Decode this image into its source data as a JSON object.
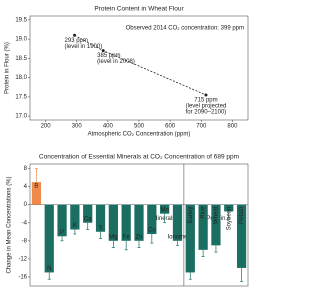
{
  "chart_data": [
    {
      "type": "line",
      "title": "Protein Content in Wheat Flour",
      "xlabel": "Atmospheric CO₂ Concentration (ppm)",
      "ylabel": "Protein in Flour (%)",
      "x": [
        293,
        385,
        715
      ],
      "values": [
        19.1,
        18.7,
        17.55
      ],
      "color": "#222222",
      "point_labels": [
        [
          "293 ppm",
          "(level in 1900)"
        ],
        [
          "385 ppm",
          "(level in 2008)"
        ],
        [
          "715 ppm",
          "(level projected",
          "for 2090–2100)"
        ]
      ],
      "annotation": "Observed 2014 CO₂ concentration: 399 ppm",
      "xlim": [
        150,
        850
      ],
      "xticks": [
        200,
        300,
        400,
        500,
        600,
        700,
        800
      ],
      "ylim": [
        16.9,
        19.6
      ],
      "yticks": [
        {
          "value": 17,
          "label": "17.0"
        },
        17.5,
        {
          "value": 18,
          "label": "18.0"
        },
        18.5,
        {
          "value": 19,
          "label": "19.0"
        },
        19.5
      ]
    },
    {
      "type": "bar",
      "title": "Concentration of Essential Minerals at CO₂ Concentration of 689 ppm",
      "ylabel": "Change in Mean Concentrations (%)",
      "groups": [
        {
          "name": "Minerals",
          "categories": [
            "B",
            "N",
            "P",
            "K",
            "Ca",
            "S",
            "Mg",
            "Fe",
            "Zn",
            "Cu",
            "Mn",
            "Ionome"
          ],
          "values": [
            5,
            -15,
            -7,
            -5.5,
            -4,
            -6,
            -8,
            -8,
            -8,
            -6.5,
            -2,
            -8
          ],
          "errors": [
            3,
            1.5,
            1,
            1,
            1.5,
            1.5,
            1.5,
            2,
            1.5,
            2,
            2,
            1
          ],
          "colors": [
            "#f08a4b",
            "#1b6e62",
            "#1b6e62",
            "#1b6e62",
            "#1b6e62",
            "#1b6e62",
            "#1b6e62",
            "#1b6e62",
            "#1b6e62",
            "#1b6e62",
            "#1b6e62",
            "#1b6e62"
          ]
        },
        {
          "name": "Protein",
          "categories": [
            "Barley",
            "Rice",
            "Wheat",
            "Soybean",
            "Potato"
          ],
          "values": [
            -15,
            -10,
            -9,
            -1.5,
            -14
          ],
          "errors": [
            1.5,
            1.5,
            1.5,
            1.5,
            3
          ],
          "colors": [
            "#1b6e62",
            "#1b6e62",
            "#1b6e62",
            "#1b6e62",
            "#1b6e62"
          ]
        }
      ],
      "ylim": [
        -18,
        9
      ],
      "yticks": [
        -16,
        -12,
        -8,
        -4,
        0,
        4,
        8
      ]
    }
  ]
}
